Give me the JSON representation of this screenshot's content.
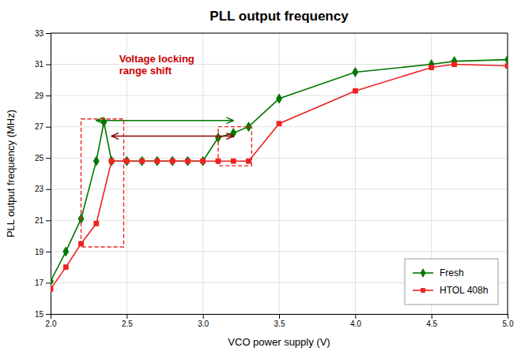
{
  "chart_data": {
    "type": "line",
    "title": "PLL output frequency",
    "xlabel": "VCO power supply (V)",
    "ylabel": "PLL output frequency (MHz)",
    "xlim": [
      2.0,
      5.0
    ],
    "ylim": [
      15,
      33
    ],
    "xticks": [
      {
        "value": 2.0,
        "label": "2.0"
      },
      2.5,
      {
        "value": 3.0,
        "label": "3.0"
      },
      3.5,
      {
        "value": 4.0,
        "label": "4.0"
      },
      4.5,
      {
        "value": 5.0,
        "label": "5.0"
      }
    ],
    "yticks": [
      15,
      17,
      19,
      21,
      23,
      25,
      27,
      29,
      31,
      33
    ],
    "grid": true,
    "legend": "lower right",
    "series": [
      {
        "name": "Fresh",
        "color": "#007700",
        "marker": "diamond",
        "x": [
          2.0,
          2.1,
          2.2,
          2.3,
          2.35,
          2.4,
          2.5,
          2.6,
          2.7,
          2.8,
          2.9,
          3.0,
          3.1,
          3.2,
          3.3,
          3.5,
          4.0,
          4.5,
          4.65,
          5.0
        ],
        "values": [
          17.1,
          19.0,
          21.1,
          24.8,
          27.3,
          24.8,
          24.8,
          24.8,
          24.8,
          24.8,
          24.8,
          24.8,
          26.3,
          26.6,
          27.0,
          28.8,
          30.5,
          31.0,
          31.2,
          31.3
        ]
      },
      {
        "name": "HTOL 408h",
        "color": "#EE2222",
        "marker": "square",
        "x": [
          2.0,
          2.1,
          2.2,
          2.3,
          2.4,
          2.5,
          2.6,
          2.7,
          2.8,
          2.9,
          3.0,
          3.1,
          3.2,
          3.3,
          3.5,
          4.0,
          4.5,
          4.65,
          5.0
        ],
        "values": [
          16.6,
          18.0,
          19.5,
          20.8,
          24.8,
          24.8,
          24.8,
          24.8,
          24.8,
          24.8,
          24.8,
          24.8,
          24.8,
          24.8,
          27.2,
          29.3,
          30.8,
          31.0,
          30.9
        ]
      }
    ],
    "arrows": [
      {
        "x": [
          2.3,
          3.2
        ],
        "y": 27.4,
        "color": "#007700"
      },
      {
        "x": [
          2.4,
          3.2
        ],
        "y": 26.4,
        "color": "#8B0000"
      }
    ],
    "rectangles": [
      {
        "x": 2.2,
        "y": 19.3,
        "width": 0.28,
        "height": 8.2,
        "color": "#EE2222"
      },
      {
        "x": 3.1,
        "y": 24.5,
        "width": 0.22,
        "height": 2.5,
        "color": "#EE2222"
      }
    ],
    "annotations": [
      {
        "text": "Voltage locking\nrange shift",
        "color": "#CC0000"
      }
    ]
  }
}
